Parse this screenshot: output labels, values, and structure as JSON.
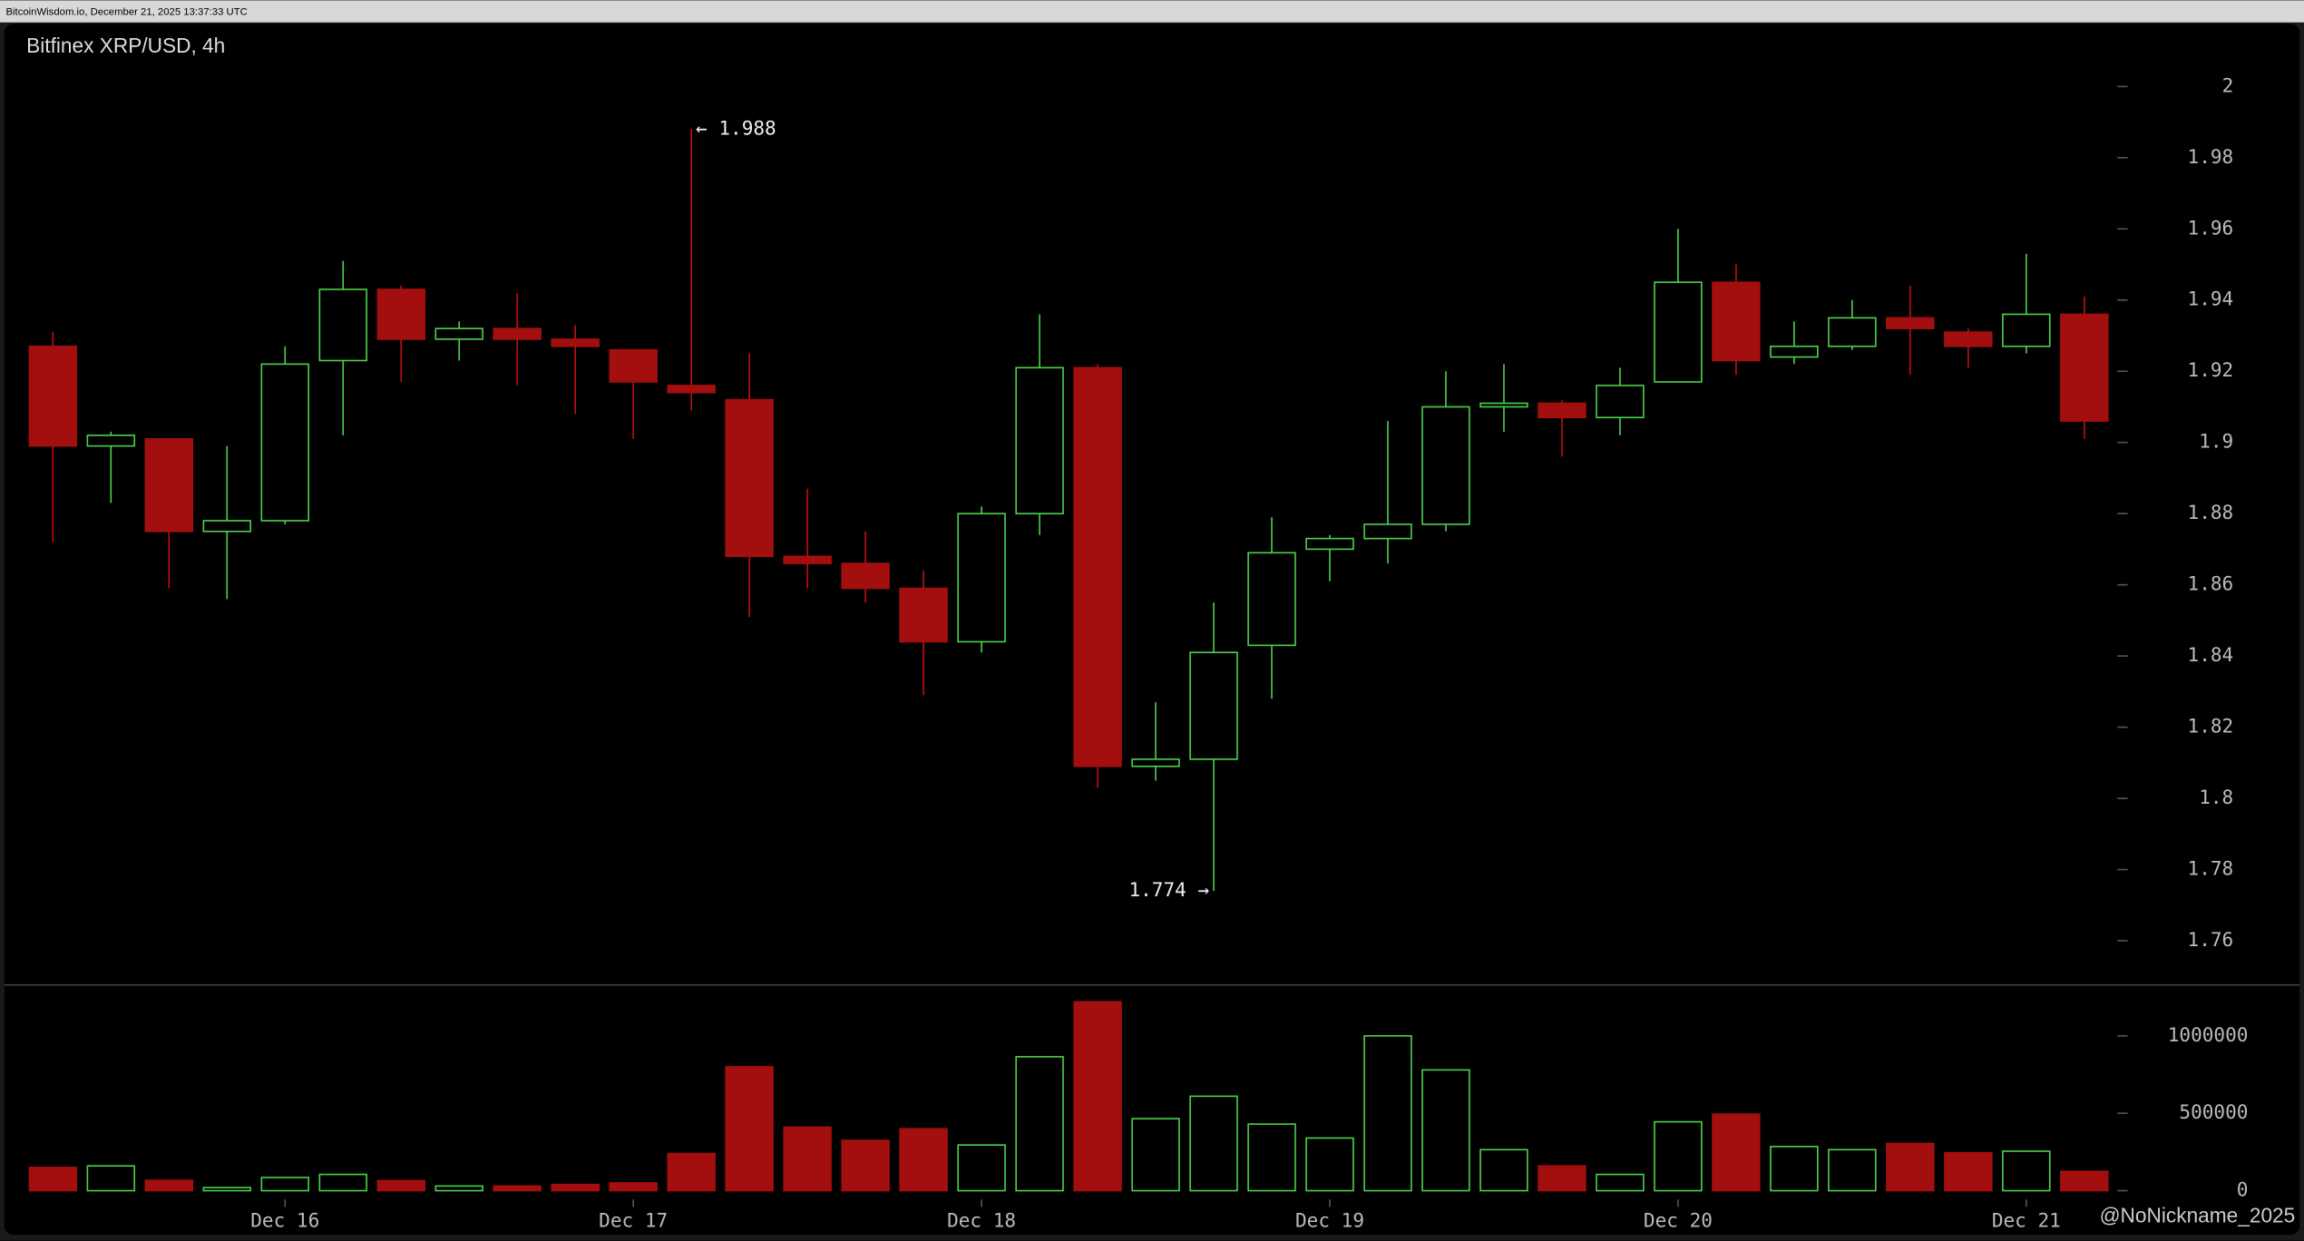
{
  "header": "BitcoinWisdom.io, December 21, 2025 13:37:33 UTC",
  "watermark": "@NoNickname_2025",
  "chart_data": {
    "type": "candlestick",
    "title": "Bitfinex XRP/USD, 4h",
    "categories": [
      null,
      null,
      null,
      null,
      "Dec 16",
      null,
      null,
      null,
      null,
      null,
      "Dec 17",
      null,
      null,
      null,
      null,
      null,
      "Dec 18",
      null,
      null,
      null,
      null,
      null,
      "Dec 19",
      null,
      null,
      null,
      null,
      null,
      "Dec 20",
      null,
      null,
      null,
      null,
      null,
      "Dec 21",
      null
    ],
    "open": [
      1.927,
      1.899,
      1.901,
      1.875,
      1.878,
      1.923,
      1.943,
      1.929,
      1.932,
      1.929,
      1.926,
      1.916,
      1.912,
      1.868,
      1.866,
      1.859,
      1.844,
      1.88,
      1.921,
      1.809,
      1.811,
      1.843,
      1.87,
      1.873,
      1.877,
      1.91,
      1.911,
      1.907,
      1.917,
      1.945,
      1.924,
      1.927,
      1.935,
      1.931,
      1.927,
      1.936
    ],
    "high": [
      1.931,
      1.903,
      1.901,
      1.899,
      1.927,
      1.951,
      1.944,
      1.934,
      1.942,
      1.933,
      1.926,
      1.988,
      1.925,
      1.887,
      1.875,
      1.864,
      1.882,
      1.936,
      1.922,
      1.827,
      1.855,
      1.879,
      1.874,
      1.906,
      1.92,
      1.922,
      1.912,
      1.921,
      1.96,
      1.95,
      1.934,
      1.94,
      1.944,
      1.932,
      1.953,
      1.941
    ],
    "low": [
      1.872,
      1.883,
      1.859,
      1.856,
      1.877,
      1.902,
      1.917,
      1.923,
      1.916,
      1.908,
      1.901,
      1.909,
      1.851,
      1.859,
      1.855,
      1.829,
      1.841,
      1.874,
      1.803,
      1.805,
      1.774,
      1.828,
      1.861,
      1.866,
      1.875,
      1.903,
      1.896,
      1.902,
      1.917,
      1.919,
      1.922,
      1.926,
      1.919,
      1.921,
      1.925,
      1.901
    ],
    "close": [
      1.899,
      1.902,
      1.875,
      1.878,
      1.922,
      1.943,
      1.929,
      1.932,
      1.929,
      1.927,
      1.917,
      1.914,
      1.868,
      1.866,
      1.859,
      1.844,
      1.88,
      1.921,
      1.809,
      1.811,
      1.841,
      1.869,
      1.873,
      1.877,
      1.91,
      1.911,
      1.907,
      1.916,
      1.945,
      1.923,
      1.927,
      1.935,
      1.932,
      1.927,
      1.936,
      1.906
    ],
    "volume": [
      150000,
      160000,
      67000,
      20000,
      85000,
      105000,
      65000,
      30000,
      30000,
      40000,
      50000,
      240000,
      800000,
      410000,
      325000,
      400000,
      295000,
      865000,
      1220000,
      465000,
      610000,
      430000,
      340000,
      1000000,
      780000,
      265000,
      160000,
      105000,
      445000,
      495000,
      285000,
      265000,
      305000,
      245000,
      255000,
      125000
    ],
    "up_color": "#4cd04c",
    "down_color": "#a30f0f",
    "ylim": [
      1.748,
      2.018
    ],
    "yticks": [
      1.76,
      1.78,
      1.8,
      1.82,
      1.84,
      1.86,
      1.88,
      1.9,
      1.92,
      1.94,
      1.96,
      1.98,
      2
    ],
    "volume_ylim": [
      0,
      1310000
    ],
    "volume_ticks": [
      0,
      500000,
      1000000
    ],
    "annotations": [
      {
        "label": "← 1.988",
        "value": 1.988
      },
      {
        "label": "1.774 →",
        "value": 1.774
      }
    ]
  }
}
